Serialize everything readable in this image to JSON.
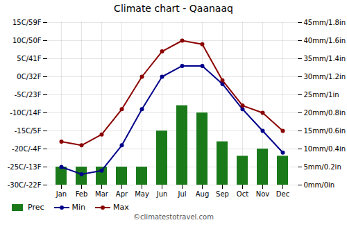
{
  "chart_data": {
    "type": "bar",
    "title": "Climate chart - Qaanaaq",
    "categories": [
      "Jan",
      "Feb",
      "Mar",
      "Apr",
      "May",
      "Jun",
      "Jul",
      "Aug",
      "Sep",
      "Oct",
      "Nov",
      "Dec"
    ],
    "series": [
      {
        "name": "Prec",
        "type": "bar",
        "axis": "y2",
        "color": "#1a7a1a",
        "values": [
          5,
          5,
          5,
          5,
          5,
          15,
          22,
          20,
          12,
          8,
          10,
          8
        ]
      },
      {
        "name": "Min",
        "type": "line",
        "marker": "circle",
        "color": "#00008B",
        "values": [
          -25,
          -27,
          -26,
          -19,
          -9,
          0,
          3,
          3,
          -2,
          -9,
          -15,
          -21
        ]
      },
      {
        "name": "Max",
        "type": "line",
        "marker": "circle",
        "color": "#8B0000",
        "values": [
          -18,
          -19,
          -16,
          -9,
          0,
          7,
          10,
          9,
          -1,
          -8,
          -10,
          -15
        ]
      }
    ],
    "ylim": [
      -30,
      15
    ],
    "yticks": [
      {
        "value": -30,
        "label": "-30C/-22F"
      },
      {
        "value": -25,
        "label": "-25C/-13F"
      },
      {
        "value": -20,
        "label": "-20C/-4F"
      },
      {
        "value": -15,
        "label": "-15C/5F"
      },
      {
        "value": -10,
        "label": "-10C/14F"
      },
      {
        "value": -5,
        "label": "-5C/23F"
      },
      {
        "value": 0,
        "label": "0C/32F"
      },
      {
        "value": 5,
        "label": "5C/41F"
      },
      {
        "value": 10,
        "label": "10C/50F"
      },
      {
        "value": 15,
        "label": "15C/59F"
      }
    ],
    "y2lim": [
      0,
      45
    ],
    "y2ticks": [
      {
        "value": 0,
        "label": "0mm/0in"
      },
      {
        "value": 5,
        "label": "5mm/0.2in"
      },
      {
        "value": 10,
        "label": "10mm/0.4in"
      },
      {
        "value": 15,
        "label": "15mm/0.6in"
      },
      {
        "value": 20,
        "label": "20mm/0.8in"
      },
      {
        "value": 25,
        "label": "25mm/1in"
      },
      {
        "value": 30,
        "label": "30mm/1.2in"
      },
      {
        "value": 35,
        "label": "35mm/1.4in"
      },
      {
        "value": 40,
        "label": "40mm/1.6in"
      },
      {
        "value": 45,
        "label": "45mm/1.8in"
      }
    ],
    "grid": true,
    "legend": "lower left",
    "annotations": [
      "©climatestotravel.com"
    ]
  }
}
